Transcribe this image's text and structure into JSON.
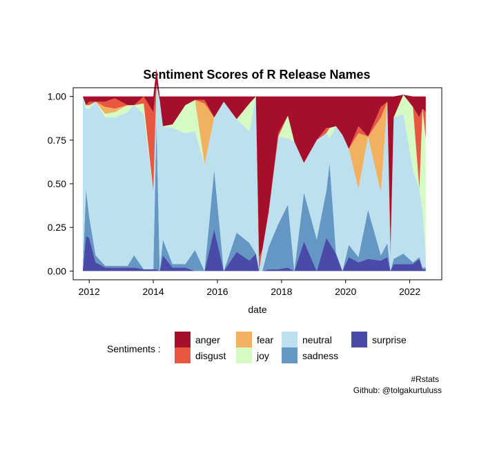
{
  "chart_data": {
    "type": "area",
    "title": "Sentiment Scores of R Release Names",
    "xlabel": "date",
    "ylabel": "",
    "xlim": [
      2011.5,
      2023.0
    ],
    "ylim": [
      -0.05,
      1.05
    ],
    "x_ticks": [
      "2012",
      "2014",
      "2016",
      "2018",
      "2020",
      "2022"
    ],
    "y_ticks": [
      "0.00",
      "0.25",
      "0.50",
      "0.75",
      "1.00"
    ],
    "legend_title": "Sentiments :",
    "legend_position": "bottom",
    "grid": false,
    "stacking": "cumulative",
    "x": [
      2011.8,
      2011.9,
      2012.0,
      2012.2,
      2012.5,
      2012.8,
      2013.2,
      2013.4,
      2013.7,
      2014.0,
      2014.1,
      2014.2,
      2014.3,
      2014.6,
      2015.0,
      2015.3,
      2015.6,
      2015.9,
      2016.2,
      2016.6,
      2017.0,
      2017.2,
      2017.3,
      2017.4,
      2017.6,
      2017.9,
      2018.2,
      2018.4,
      2018.7,
      2019.1,
      2019.4,
      2019.5,
      2019.7,
      2019.9,
      2020.1,
      2020.4,
      2020.7,
      2021.1,
      2021.3,
      2021.4,
      2021.5,
      2021.8,
      2022.1,
      2022.3,
      2022.4,
      2022.5
    ],
    "series": [
      {
        "name": "surprise",
        "color": "#4a4aa8",
        "values": [
          0.0,
          0.2,
          0.19,
          0.05,
          0.02,
          0.02,
          0.02,
          0.02,
          0.01,
          0.01,
          0.01,
          0.0,
          0.09,
          0.02,
          0.02,
          0.0,
          0.0,
          0.24,
          0.0,
          0.11,
          0.06,
          0.1,
          0.0,
          0.0,
          0.01,
          0.01,
          0.02,
          0.0,
          0.17,
          0.0,
          0.19,
          0.16,
          0.1,
          0.0,
          0.08,
          0.05,
          0.07,
          0.06,
          0.08,
          0.0,
          0.04,
          0.04,
          0.04,
          0.07,
          0.01,
          0.01
        ]
      },
      {
        "name": "sadness",
        "color": "#6497c4",
        "values": [
          0.0,
          0.27,
          0.12,
          0.04,
          0.01,
          0.01,
          0.01,
          0.07,
          0.0,
          0.0,
          0.84,
          0.0,
          0.09,
          0.02,
          0.02,
          0.12,
          0.0,
          0.34,
          0.0,
          0.11,
          0.1,
          0.0,
          0.0,
          0.0,
          0.13,
          0.26,
          0.36,
          0.0,
          0.28,
          0.18,
          0.27,
          0.46,
          0.0,
          0.0,
          0.07,
          0.03,
          0.28,
          0.03,
          0.08,
          0.0,
          0.03,
          0.06,
          0.01,
          0.01,
          0.01,
          0.01
        ]
      },
      {
        "name": "neutral",
        "color": "#bde0ee",
        "values": [
          1.0,
          0.46,
          0.62,
          0.88,
          0.85,
          0.85,
          0.88,
          0.86,
          0.89,
          0.45,
          0.22,
          0.98,
          0.65,
          0.78,
          0.75,
          0.68,
          0.61,
          0.3,
          0.97,
          0.65,
          0.64,
          0.9,
          0.0,
          0.12,
          0.2,
          0.5,
          0.38,
          0.74,
          0.17,
          0.57,
          0.33,
          0.14,
          0.73,
          0.78,
          0.55,
          0.39,
          0.42,
          0.36,
          0.81,
          0.08,
          0.81,
          0.8,
          0.53,
          0.39,
          0.33,
          0.08
        ]
      },
      {
        "name": "joy",
        "color": "#d6fbc2",
        "values": [
          0.0,
          0.02,
          0.02,
          0.0,
          0.02,
          0.03,
          0.04,
          0.0,
          0.06,
          0.0,
          0.0,
          0.0,
          0.0,
          0.02,
          0.16,
          0.18,
          0.0,
          0.0,
          0.0,
          0.0,
          0.16,
          0.0,
          0.0,
          0.0,
          0.0,
          0.0,
          0.13,
          0.0,
          0.0,
          0.0,
          0.0,
          0.06,
          0.0,
          0.0,
          0.0,
          0.0,
          0.0,
          0.0,
          0.0,
          0.0,
          0.0,
          0.11,
          0.36,
          0.0,
          0.58,
          0.66
        ]
      },
      {
        "name": "fear",
        "color": "#f2b061",
        "values": [
          0.0,
          0.0,
          0.0,
          0.0,
          0.04,
          0.02,
          0.0,
          0.0,
          0.0,
          0.0,
          0.0,
          0.0,
          0.0,
          0.0,
          0.0,
          0.0,
          0.35,
          0.0,
          0.0,
          0.0,
          0.0,
          0.0,
          0.0,
          0.0,
          0.0,
          0.0,
          0.0,
          0.0,
          0.0,
          0.0,
          0.0,
          0.0,
          0.0,
          0.0,
          0.0,
          0.32,
          0.0,
          0.43,
          0.0,
          0.0,
          0.0,
          0.0,
          0.0,
          0.0,
          0.0,
          0.0
        ]
      },
      {
        "name": "disgust",
        "color": "#e8573f",
        "values": [
          0.0,
          0.0,
          0.02,
          0.0,
          0.03,
          0.06,
          0.0,
          0.0,
          0.04,
          0.45,
          0.0,
          0.0,
          0.0,
          0.0,
          0.0,
          0.0,
          0.02,
          0.0,
          0.0,
          0.0,
          0.0,
          0.0,
          0.08,
          0.0,
          0.0,
          0.02,
          0.0,
          0.0,
          0.0,
          0.0,
          0.03,
          0.0,
          0.0,
          0.0,
          0.0,
          0.04,
          0.0,
          0.06,
          0.0,
          0.06,
          0.0,
          0.0,
          0.0,
          0.41,
          0.0,
          0.15
        ]
      },
      {
        "name": "anger",
        "color": "#a50f2c",
        "values": [
          0.0,
          0.05,
          0.03,
          0.03,
          0.03,
          0.01,
          0.05,
          0.05,
          0.0,
          0.09,
          0.09,
          0.02,
          0.17,
          0.16,
          0.05,
          0.02,
          0.02,
          0.12,
          0.03,
          0.13,
          0.04,
          0.0,
          0.92,
          0.88,
          0.66,
          0.21,
          0.11,
          0.26,
          0.38,
          0.25,
          0.18,
          0.18,
          0.17,
          0.22,
          0.3,
          0.17,
          0.23,
          0.06,
          0.03,
          0.86,
          0.12,
          0.0,
          0.06,
          0.12,
          0.07,
          0.09
        ]
      }
    ]
  },
  "caption": {
    "line1": "#Rstats",
    "line2": "Github: @tolgakurtuluss"
  }
}
